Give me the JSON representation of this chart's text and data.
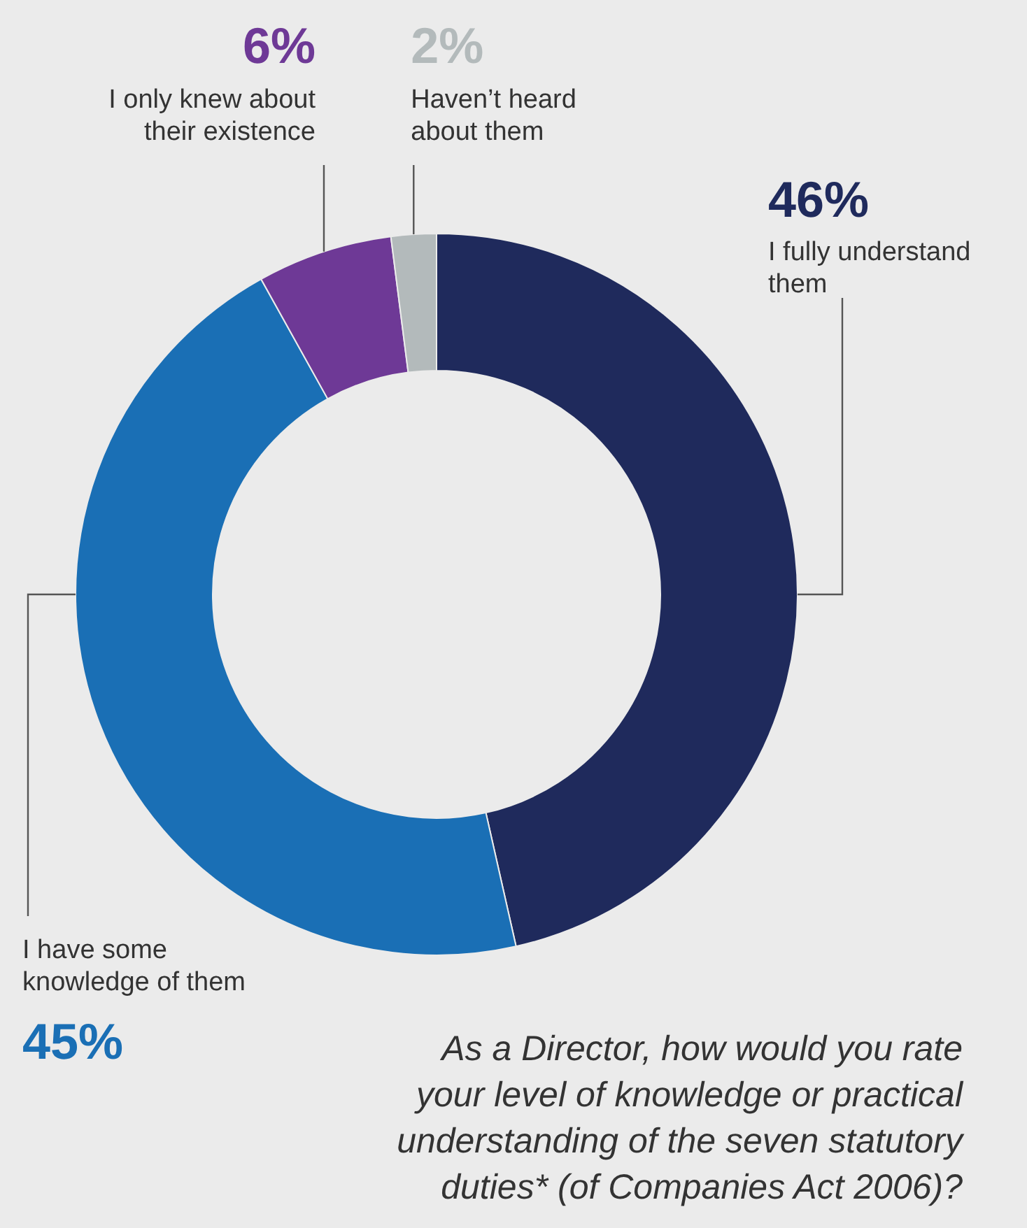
{
  "chart_data": {
    "type": "donut",
    "title": "As a Director, how would you rate your level of knowledge or practical understanding of the seven statutory duties* (of Companies Act 2006)?",
    "categories": [
      "I fully understand them",
      "I have some knowledge of them",
      "I only knew about their existence",
      "Haven’t heard about them"
    ],
    "values": [
      46,
      45,
      6,
      2
    ],
    "value_labels": [
      "46%",
      "45%",
      "6%",
      "2%"
    ],
    "colors": [
      "#1f2a5c",
      "#1a6fb5",
      "#6e3996",
      "#b3babb"
    ]
  }
}
